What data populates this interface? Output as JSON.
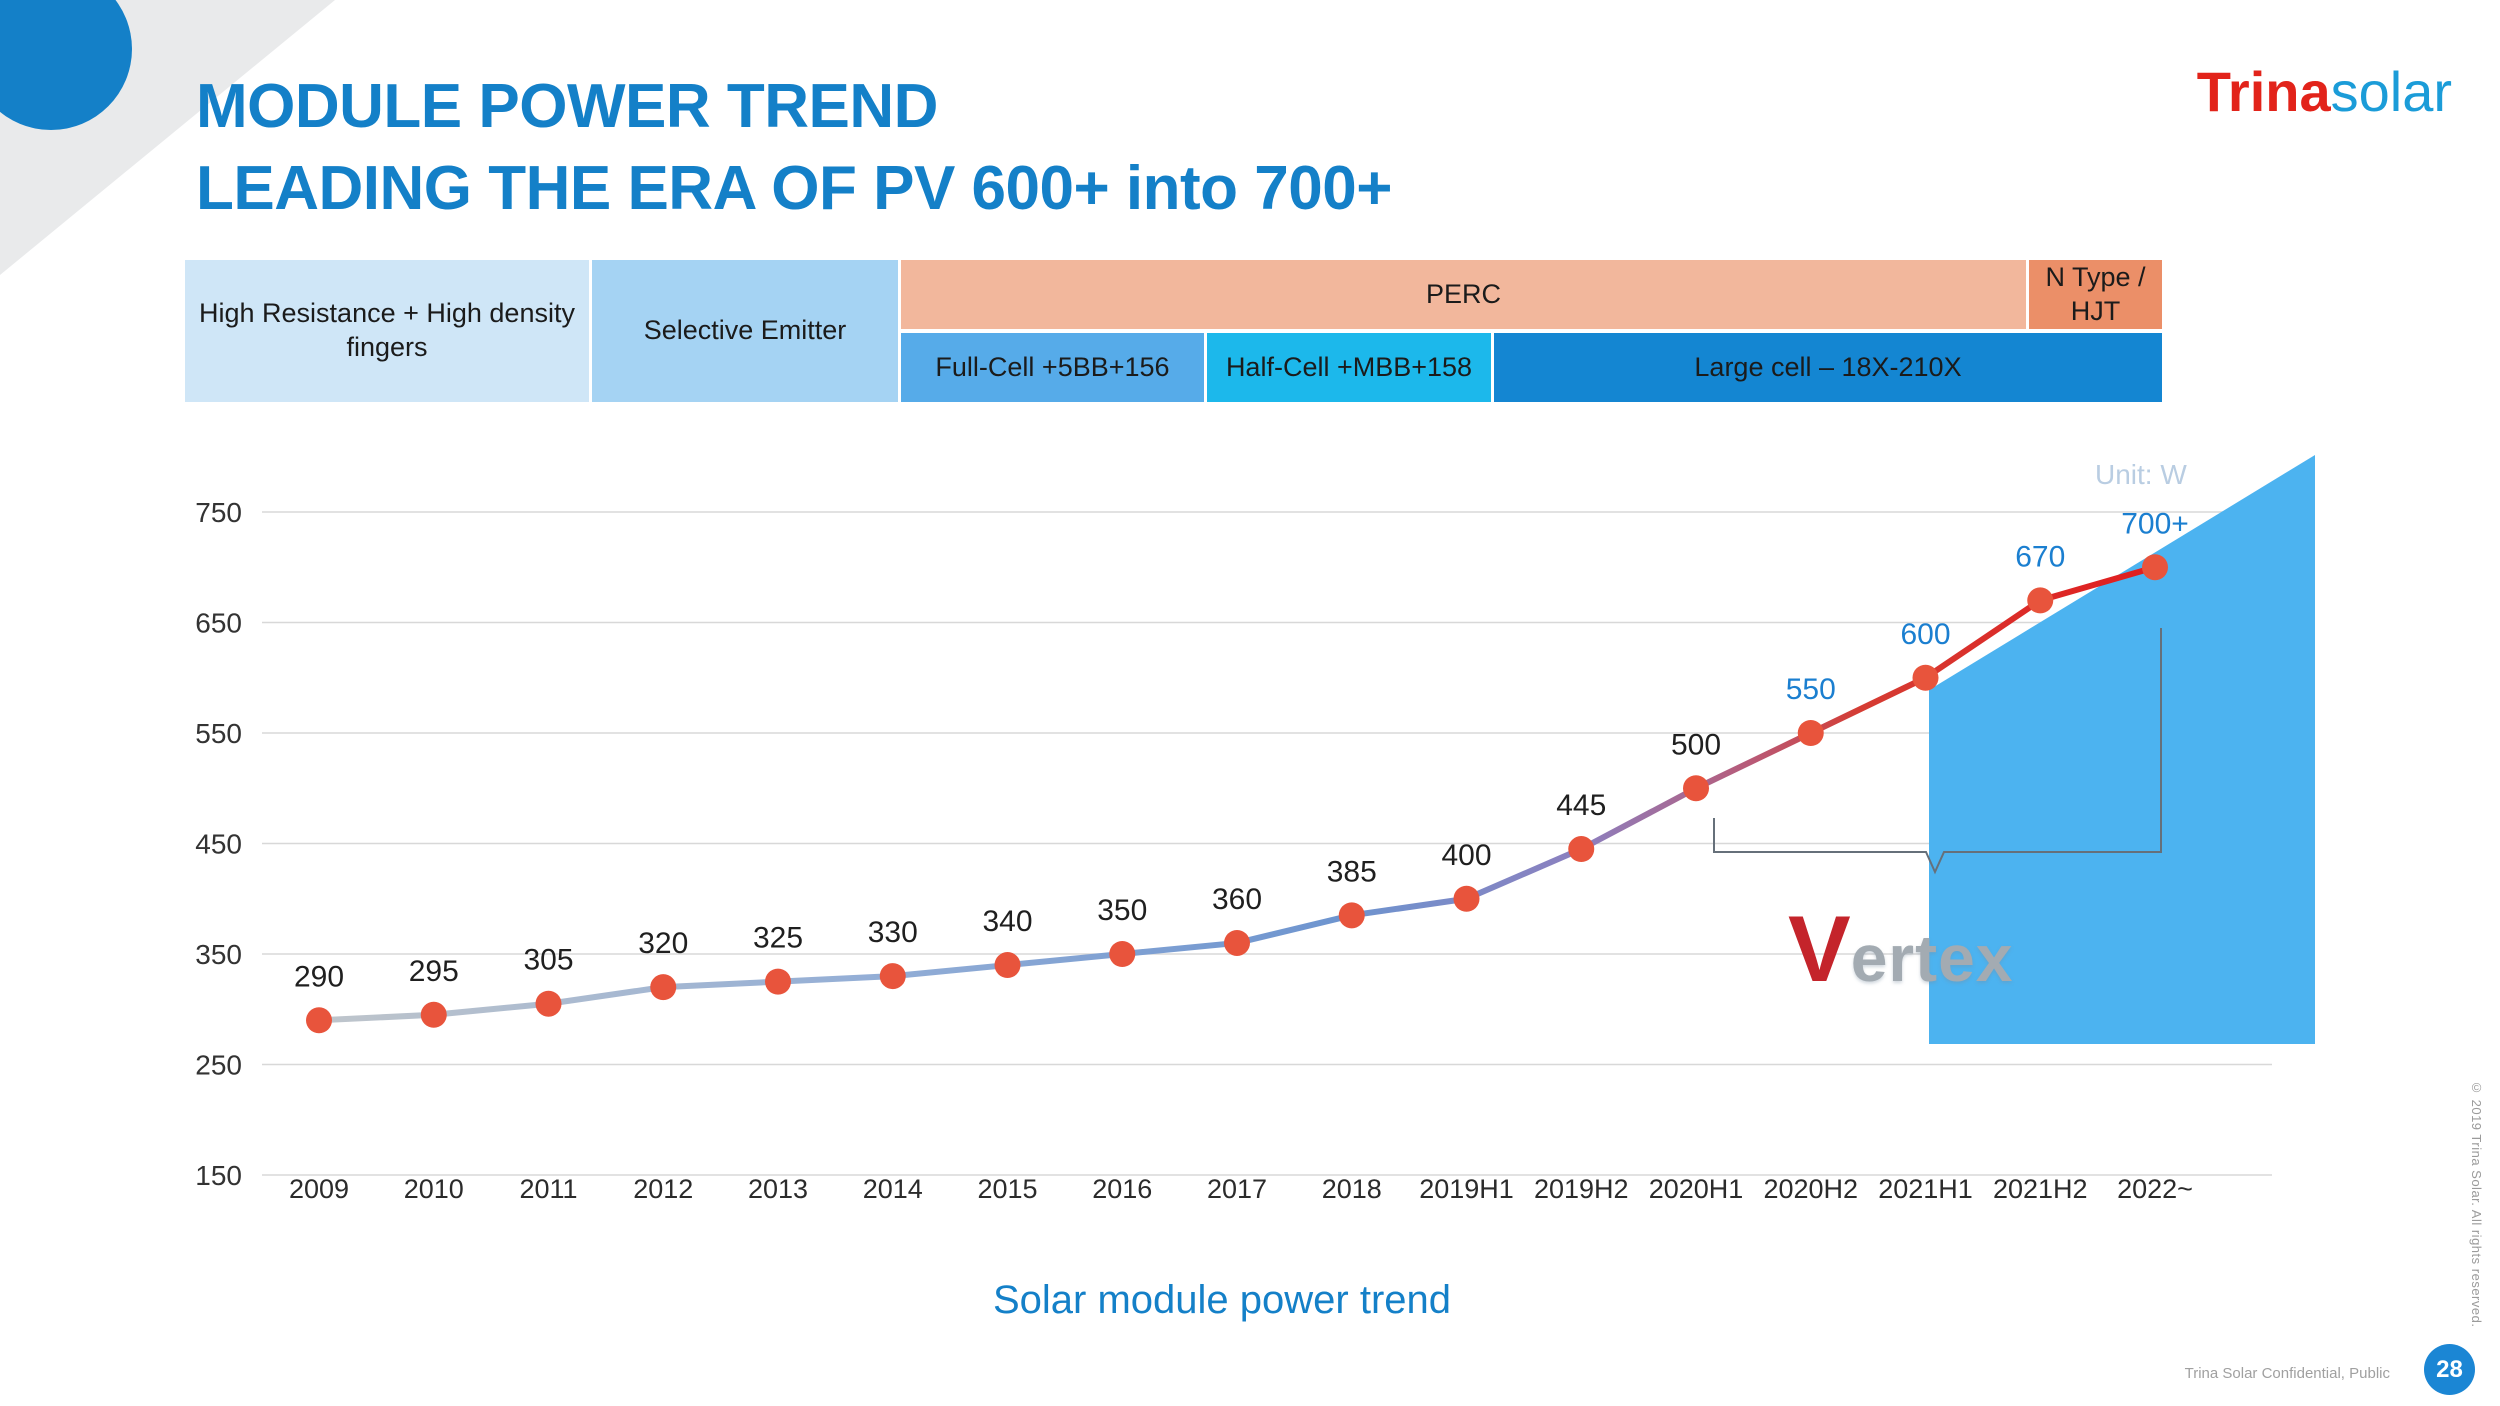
{
  "header": {
    "title_line1": "MODULE POWER TREND",
    "title_line2": "LEADING THE ERA OF PV 600+ into 700+",
    "logo_trina": "Trina",
    "logo_solar": "solar"
  },
  "theme": {
    "accent_blue": "#1480c8",
    "logo_red": "#e2231a",
    "logo_blue": "#1b9cd8",
    "badge_blue": "#1b86d4"
  },
  "tech_bands": {
    "span_cells": [
      {
        "label": "High Resistance + High density fingers",
        "color": "#cfe6f7"
      },
      {
        "label": "Selective Emitter",
        "color": "#a5d3f3"
      }
    ],
    "top_cells": [
      {
        "label": "PERC",
        "color": "#f2b79c"
      },
      {
        "label": "N Type / HJT",
        "color": "#eb8f68"
      }
    ],
    "bottom_cells": [
      {
        "label": "Full-Cell +5BB+156",
        "color": "#56abe9"
      },
      {
        "label": "Half-Cell +MBB+158",
        "color": "#1cb8eb"
      },
      {
        "label": "Large cell – 18X-210X",
        "color": "#1486d2"
      }
    ]
  },
  "chart_data": {
    "type": "line",
    "title": "Solar module power trend",
    "unit_label": "Unit: W",
    "categories": [
      "2009",
      "2010",
      "2011",
      "2012",
      "2013",
      "2014",
      "2015",
      "2016",
      "2017",
      "2018",
      "2019H1",
      "2019H2",
      "2020H1",
      "2020H2",
      "2021H1",
      "2021H2",
      "2022~"
    ],
    "values": [
      290,
      295,
      305,
      320,
      325,
      330,
      340,
      350,
      360,
      385,
      400,
      445,
      500,
      550,
      600,
      670,
      700
    ],
    "point_labels": [
      "290",
      "295",
      "305",
      "320",
      "325",
      "330",
      "340",
      "350",
      "360",
      "385",
      "400",
      "445",
      "500",
      "550",
      "600",
      "670",
      "700+"
    ],
    "yticks": [
      150,
      250,
      350,
      450,
      550,
      650,
      750
    ],
    "ylim": [
      150,
      780
    ],
    "grid": true,
    "legend": false,
    "line_gradient": [
      {
        "offset": 0,
        "color": "#bfc5cb"
      },
      {
        "offset": 0.3,
        "color": "#93aed6"
      },
      {
        "offset": 0.56,
        "color": "#6d94cf"
      },
      {
        "offset": 0.69,
        "color": "#8d7fbe"
      },
      {
        "offset": 0.78,
        "color": "#b85a77"
      },
      {
        "offset": 0.84,
        "color": "#d53c33"
      },
      {
        "offset": 1,
        "color": "#e11d1f"
      }
    ],
    "point_color": "#e8543c",
    "label_color_default": "#1f1f1f",
    "label_color_highlight": "#1b7fd0",
    "highlight_from_index": 13,
    "projection_area_color": "#4cb3f0",
    "axis_label_color": "#333333",
    "grid_color": "#d8d8d8",
    "unit_label_color": "#b9cde2",
    "bracket_color": "#66707a"
  },
  "vertex": {
    "initial": "V",
    "rest": "ertex"
  },
  "footer": {
    "confidential": "Trina Solar Confidential, Public",
    "page_number": "28",
    "copyright": "© 2019 Trina Solar. All rights reserved."
  }
}
